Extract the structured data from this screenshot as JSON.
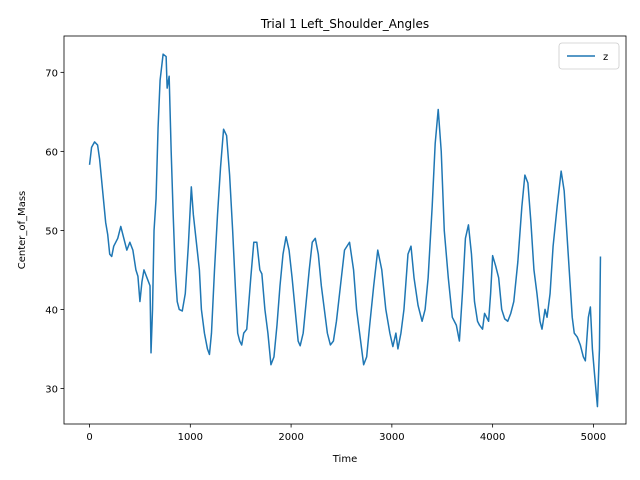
{
  "chart_data": {
    "type": "line",
    "title": "Trial 1 Left_Shoulder_Angles",
    "x_label": "Time",
    "y_label": "Center_of_Mass",
    "x": [
      0,
      20,
      50,
      80,
      100,
      130,
      160,
      180,
      200,
      220,
      240,
      280,
      310,
      340,
      370,
      400,
      430,
      460,
      480,
      500,
      520,
      540,
      570,
      600,
      610,
      625,
      640,
      660,
      680,
      700,
      730,
      760,
      770,
      790,
      810,
      830,
      850,
      870,
      890,
      920,
      950,
      980,
      1010,
      1030,
      1060,
      1090,
      1110,
      1140,
      1170,
      1190,
      1210,
      1240,
      1270,
      1300,
      1330,
      1360,
      1390,
      1420,
      1450,
      1470,
      1490,
      1510,
      1530,
      1560,
      1600,
      1630,
      1660,
      1690,
      1710,
      1740,
      1770,
      1800,
      1830,
      1860,
      1890,
      1920,
      1950,
      1980,
      2010,
      2040,
      2070,
      2090,
      2120,
      2150,
      2180,
      2210,
      2240,
      2270,
      2300,
      2330,
      2360,
      2390,
      2420,
      2450,
      2490,
      2530,
      2580,
      2620,
      2650,
      2690,
      2720,
      2750,
      2780,
      2820,
      2860,
      2900,
      2940,
      2980,
      3010,
      3040,
      3060,
      3090,
      3120,
      3160,
      3190,
      3220,
      3260,
      3300,
      3330,
      3360,
      3400,
      3430,
      3460,
      3490,
      3520,
      3560,
      3600,
      3640,
      3670,
      3700,
      3730,
      3760,
      3790,
      3820,
      3850,
      3870,
      3900,
      3920,
      3960,
      3980,
      4000,
      4030,
      4060,
      4090,
      4120,
      4150,
      4180,
      4210,
      4250,
      4290,
      4320,
      4350,
      4380,
      4410,
      4440,
      4470,
      4490,
      4520,
      4540,
      4570,
      4600,
      4640,
      4680,
      4710,
      4740,
      4770,
      4790,
      4810,
      4840,
      4870,
      4900,
      4920,
      4950,
      4970,
      4990,
      5010,
      5040,
      5060,
      5070
    ],
    "series": [
      {
        "name": "z",
        "color": "#1f77b4",
        "values": [
          58.3,
          60.5,
          61.2,
          60.8,
          59,
          55,
          51,
          49.5,
          47,
          46.7,
          48,
          49,
          50.5,
          49,
          47.5,
          48.5,
          47.5,
          45,
          44.2,
          41,
          43.5,
          45,
          44,
          43,
          34.5,
          40,
          50,
          54,
          63,
          69,
          72.3,
          72,
          68,
          69.5,
          60,
          52,
          45,
          41,
          40,
          39.8,
          42,
          48,
          55.5,
          52,
          48.5,
          45,
          40,
          37,
          35,
          34.3,
          37,
          45,
          52,
          58,
          62.8,
          62,
          57,
          50,
          42,
          37,
          36,
          35.5,
          37,
          37.5,
          44,
          48.5,
          48.5,
          45,
          44.5,
          40,
          37,
          33,
          34,
          38,
          43,
          47,
          49.2,
          47.5,
          44,
          40,
          36,
          35.4,
          37,
          41,
          45,
          48.5,
          49,
          47,
          43,
          40,
          37,
          35.5,
          36,
          38.5,
          43,
          47.5,
          48.5,
          45,
          40,
          36,
          33,
          34,
          38,
          43,
          47.5,
          45,
          40,
          37,
          35.3,
          37,
          35,
          37,
          40,
          47,
          48,
          44,
          40.5,
          38.5,
          40,
          44,
          53,
          61,
          65.3,
          60,
          50,
          44,
          39,
          38,
          36,
          42,
          49,
          50.7,
          47,
          41,
          38.5,
          38,
          37.5,
          39.5,
          38.5,
          42,
          46.8,
          45.5,
          44,
          40,
          38.8,
          38.5,
          39.5,
          41,
          46,
          53,
          57,
          56,
          51,
          45,
          42,
          38.5,
          37.5,
          40,
          39,
          42,
          48,
          53,
          57.5,
          55,
          49,
          43,
          39,
          37,
          36.5,
          35.5,
          34,
          33.5,
          39,
          40.3,
          35,
          32,
          27.7,
          35,
          46.7
        ]
      }
    ],
    "xlim": [
      -253.5,
      5323.5
    ],
    "ylim": [
      25.5,
      74.6
    ],
    "xticks": [
      0,
      1000,
      2000,
      3000,
      4000,
      5000
    ],
    "yticks": [
      30,
      40,
      50,
      60,
      70
    ],
    "legend_position": "upper right"
  }
}
